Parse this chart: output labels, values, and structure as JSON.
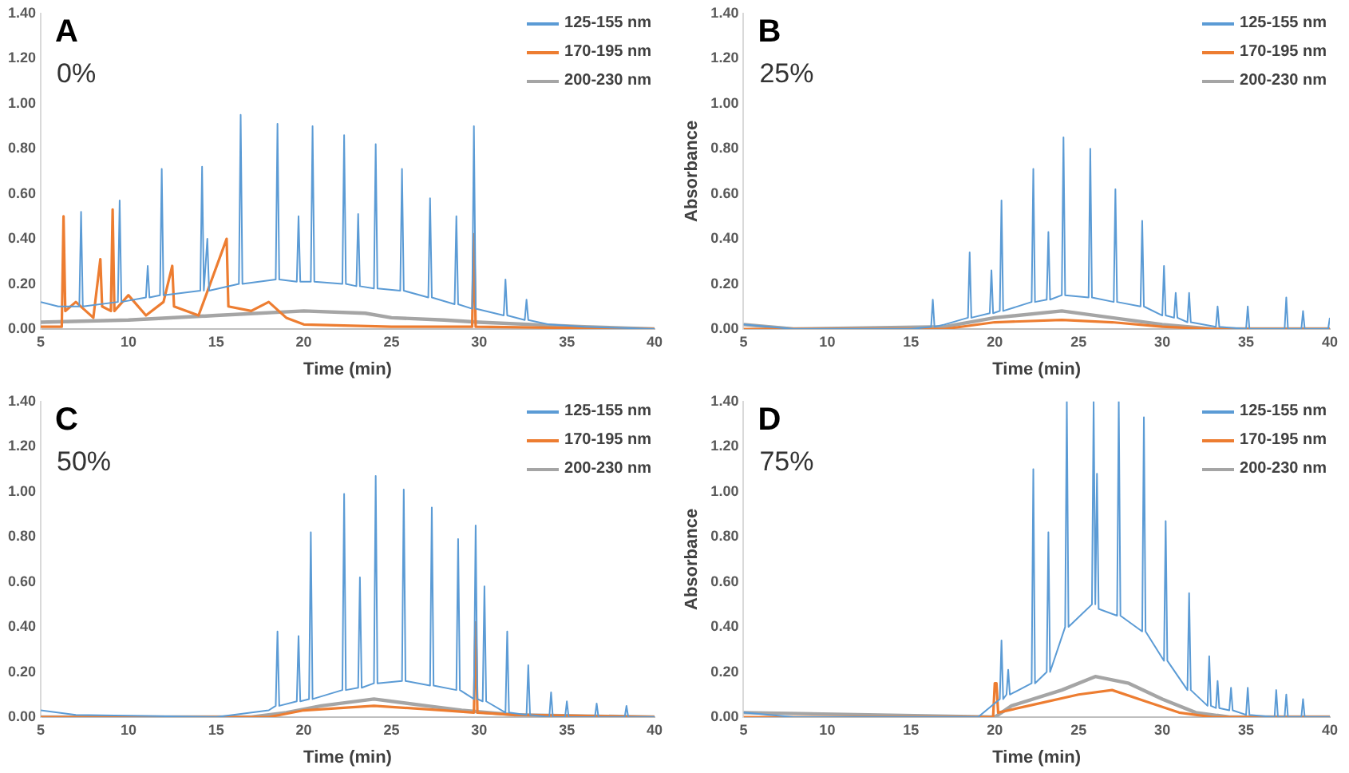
{
  "chart_data": [
    {
      "type": "line",
      "title": "A",
      "annotations": [
        "0%"
      ],
      "xlabel": "Time (min)",
      "xlim": [
        5,
        40
      ],
      "xticks": [
        5,
        10,
        15,
        20,
        25,
        30,
        35,
        40
      ],
      "ylim": [
        0,
        1.4
      ],
      "yticks": [
        {
          "value": 0,
          "label": "0.00"
        },
        {
          "value": 0.2,
          "label": "0.20"
        },
        {
          "value": 0.4,
          "label": "0.40"
        },
        {
          "value": 0.6,
          "label": "0.60"
        },
        {
          "value": 0.8,
          "label": "0.80"
        },
        {
          "value": 1,
          "label": "1.00"
        },
        {
          "value": 1.2,
          "label": "1.20"
        },
        {
          "value": 1.4,
          "label": "1.40"
        }
      ],
      "grid": false,
      "legend": "top right",
      "marker": "none",
      "line_style": "solid",
      "series": [
        {
          "name": "125-155 nm",
          "color": "#5b9bd5",
          "x": [
            5,
            6,
            7.2,
            7.3,
            7.4,
            9.4,
            9.5,
            9.6,
            11,
            11.1,
            11.2,
            11.8,
            11.9,
            12,
            14.1,
            14.2,
            14.3,
            14.5,
            14.6,
            16.3,
            16.4,
            16.5,
            18.4,
            18.5,
            18.6,
            19.6,
            19.7,
            19.8,
            20.4,
            20.5,
            20.6,
            22.2,
            22.3,
            22.4,
            23,
            23.1,
            23.2,
            24,
            24.1,
            24.2,
            25.5,
            25.6,
            25.7,
            27.1,
            27.2,
            27.3,
            28.6,
            28.7,
            28.8,
            29.6,
            29.7,
            29.8,
            31.4,
            31.5,
            31.6,
            32.6,
            32.7,
            32.8,
            34,
            36,
            40
          ],
          "values": [
            0.12,
            0.1,
            0.1,
            0.52,
            0.1,
            0.12,
            0.57,
            0.12,
            0.14,
            0.28,
            0.14,
            0.15,
            0.71,
            0.15,
            0.17,
            0.72,
            0.17,
            0.4,
            0.17,
            0.2,
            0.95,
            0.2,
            0.22,
            0.91,
            0.22,
            0.21,
            0.5,
            0.21,
            0.21,
            0.9,
            0.21,
            0.2,
            0.86,
            0.2,
            0.19,
            0.51,
            0.19,
            0.18,
            0.82,
            0.18,
            0.17,
            0.71,
            0.17,
            0.14,
            0.58,
            0.14,
            0.11,
            0.5,
            0.11,
            0.09,
            0.9,
            0.09,
            0.06,
            0.22,
            0.06,
            0.04,
            0.13,
            0.04,
            0.02,
            0.01,
            0
          ]
        },
        {
          "name": "170-195 nm",
          "color": "#ed7d31",
          "x": [
            5,
            6.2,
            6.3,
            6.4,
            7,
            8,
            8.4,
            8.5,
            9,
            9.1,
            9.2,
            10,
            11,
            12,
            12.5,
            12.6,
            14,
            15.6,
            15.7,
            17,
            18,
            19,
            20,
            25,
            29.6,
            29.7,
            29.8,
            40
          ],
          "values": [
            0.01,
            0.01,
            0.5,
            0.08,
            0.12,
            0.05,
            0.31,
            0.1,
            0.08,
            0.53,
            0.08,
            0.15,
            0.06,
            0.12,
            0.28,
            0.1,
            0.06,
            0.4,
            0.1,
            0.08,
            0.12,
            0.05,
            0.02,
            0.01,
            0.01,
            0.42,
            0.01,
            0
          ]
        },
        {
          "name": "200-230 nm",
          "color": "#a5a5a5",
          "x": [
            5,
            10,
            15,
            20,
            23.5,
            25,
            28,
            30,
            33,
            36,
            40
          ],
          "values": [
            0.03,
            0.04,
            0.06,
            0.08,
            0.07,
            0.05,
            0.04,
            0.03,
            0.02,
            0.01,
            0
          ]
        }
      ]
    },
    {
      "type": "line",
      "title": "B",
      "annotations": [
        "25%"
      ],
      "xlabel": "Time (min)",
      "ylabel": "Absorbance",
      "xlim": [
        5,
        40
      ],
      "xticks": [
        5,
        10,
        15,
        20,
        25,
        30,
        35,
        40
      ],
      "ylim": [
        0,
        1.4
      ],
      "yticks": [
        {
          "value": 0,
          "label": "0.00"
        },
        {
          "value": 0.2,
          "label": "0.20"
        },
        {
          "value": 0.4,
          "label": "0.40"
        },
        {
          "value": 0.6,
          "label": "0.60"
        },
        {
          "value": 0.8,
          "label": "0.80"
        },
        {
          "value": 1,
          "label": "1.00"
        },
        {
          "value": 1.2,
          "label": "1.20"
        },
        {
          "value": 1.4,
          "label": "1.40"
        }
      ],
      "grid": false,
      "legend": "top right",
      "marker": "none",
      "line_style": "solid",
      "series": [
        {
          "name": "125-155 nm",
          "color": "#5b9bd5",
          "x": [
            5,
            8,
            15,
            16.2,
            16.3,
            16.4,
            17,
            18.4,
            18.5,
            18.6,
            19.7,
            19.8,
            19.9,
            20.3,
            20.4,
            20.5,
            22.2,
            22.3,
            22.4,
            23.1,
            23.2,
            23.3,
            24,
            24.1,
            24.2,
            25.6,
            25.7,
            25.8,
            27.1,
            27.2,
            27.3,
            28.7,
            28.8,
            28.9,
            30,
            30.1,
            30.2,
            30.7,
            30.8,
            30.9,
            31.5,
            31.6,
            31.7,
            33.2,
            33.3,
            33.4,
            35,
            35.1,
            35.2,
            37.3,
            37.4,
            37.5,
            38.3,
            38.4,
            38.5,
            39.9,
            40
          ],
          "values": [
            0.02,
            0,
            0,
            0.01,
            0.13,
            0.01,
            0.02,
            0.05,
            0.34,
            0.05,
            0.07,
            0.26,
            0.07,
            0.08,
            0.57,
            0.08,
            0.12,
            0.71,
            0.12,
            0.13,
            0.43,
            0.13,
            0.15,
            0.85,
            0.15,
            0.14,
            0.8,
            0.14,
            0.12,
            0.62,
            0.12,
            0.1,
            0.48,
            0.1,
            0.06,
            0.28,
            0.06,
            0.05,
            0.16,
            0.05,
            0.03,
            0.16,
            0.03,
            0.01,
            0.1,
            0.01,
            0,
            0.1,
            0,
            0,
            0.14,
            0,
            0,
            0.08,
            0,
            0,
            0.05
          ]
        },
        {
          "name": "170-195 nm",
          "color": "#ed7d31",
          "x": [
            5,
            17,
            20,
            24,
            27,
            30,
            33,
            40
          ],
          "values": [
            0,
            0,
            0.03,
            0.04,
            0.03,
            0.01,
            0,
            0
          ]
        },
        {
          "name": "200-230 nm",
          "color": "#a5a5a5",
          "x": [
            5,
            8,
            17,
            20,
            24,
            27,
            30,
            33,
            40
          ],
          "values": [
            0.02,
            0,
            0.01,
            0.05,
            0.08,
            0.05,
            0.02,
            0,
            0
          ]
        }
      ]
    },
    {
      "type": "line",
      "title": "C",
      "annotations": [
        "50%"
      ],
      "xlabel": "Time (min)",
      "xlim": [
        5,
        40
      ],
      "xticks": [
        5,
        10,
        15,
        20,
        25,
        30,
        35,
        40
      ],
      "ylim": [
        0,
        1.4
      ],
      "yticks": [
        {
          "value": 0,
          "label": "0.00"
        },
        {
          "value": 0.2,
          "label": "0.20"
        },
        {
          "value": 0.4,
          "label": "0.40"
        },
        {
          "value": 0.6,
          "label": "0.60"
        },
        {
          "value": 0.8,
          "label": "0.80"
        },
        {
          "value": 1,
          "label": "1.00"
        },
        {
          "value": 1.2,
          "label": "1.20"
        },
        {
          "value": 1.4,
          "label": "1.40"
        }
      ],
      "grid": false,
      "legend": "top right",
      "marker": "none",
      "line_style": "solid",
      "series": [
        {
          "name": "125-155 nm",
          "color": "#5b9bd5",
          "x": [
            5,
            7,
            15,
            18,
            18.4,
            18.5,
            18.6,
            19.6,
            19.7,
            19.8,
            20.3,
            20.4,
            20.5,
            22.2,
            22.3,
            22.4,
            23.1,
            23.2,
            23.3,
            24,
            24.1,
            24.2,
            25.6,
            25.7,
            25.8,
            27.2,
            27.3,
            27.4,
            28.7,
            28.8,
            28.9,
            29.7,
            29.8,
            29.9,
            30.2,
            30.3,
            30.4,
            31.5,
            31.6,
            31.7,
            32.7,
            32.8,
            32.9,
            34,
            34.1,
            34.2,
            34.9,
            35,
            35.1,
            36.6,
            36.7,
            36.8,
            38.3,
            38.4,
            38.5,
            40
          ],
          "values": [
            0.03,
            0.01,
            0,
            0.03,
            0.05,
            0.38,
            0.05,
            0.07,
            0.36,
            0.07,
            0.08,
            0.82,
            0.08,
            0.12,
            0.99,
            0.12,
            0.13,
            0.62,
            0.13,
            0.15,
            1.07,
            0.15,
            0.16,
            1.01,
            0.16,
            0.14,
            0.93,
            0.14,
            0.12,
            0.79,
            0.12,
            0.08,
            0.85,
            0.08,
            0.07,
            0.58,
            0.07,
            0.02,
            0.38,
            0.02,
            0.01,
            0.23,
            0.01,
            0,
            0.11,
            0,
            0,
            0.07,
            0,
            0,
            0.06,
            0,
            0,
            0.05,
            0,
            0
          ]
        },
        {
          "name": "170-195 nm",
          "color": "#ed7d31",
          "x": [
            5,
            18,
            20,
            24,
            28,
            29.7,
            29.8,
            29.9,
            32,
            40
          ],
          "values": [
            0,
            0,
            0.03,
            0.05,
            0.03,
            0.02,
            0.42,
            0.02,
            0.01,
            0
          ]
        },
        {
          "name": "200-230 nm",
          "color": "#a5a5a5",
          "x": [
            5,
            17,
            19,
            21,
            24,
            27,
            29,
            32,
            40
          ],
          "values": [
            0,
            0,
            0.02,
            0.05,
            0.08,
            0.05,
            0.03,
            0.01,
            0
          ]
        }
      ]
    },
    {
      "type": "line",
      "title": "D",
      "annotations": [
        "75%"
      ],
      "xlabel": "Time (min)",
      "ylabel": "Absorbance",
      "xlim": [
        5,
        40
      ],
      "xticks": [
        5,
        10,
        15,
        20,
        25,
        30,
        35,
        40
      ],
      "ylim": [
        0,
        1.4
      ],
      "yticks": [
        {
          "value": 0,
          "label": "0.00"
        },
        {
          "value": 0.2,
          "label": "0.20"
        },
        {
          "value": 0.4,
          "label": "0.40"
        },
        {
          "value": 0.6,
          "label": "0.60"
        },
        {
          "value": 0.8,
          "label": "0.80"
        },
        {
          "value": 1,
          "label": "1.00"
        },
        {
          "value": 1.2,
          "label": "1.20"
        },
        {
          "value": 1.4,
          "label": "1.40"
        }
      ],
      "grid": false,
      "legend": "top right",
      "marker": "none",
      "line_style": "solid",
      "series": [
        {
          "name": "125-155 nm",
          "color": "#5b9bd5",
          "x": [
            5,
            8,
            19,
            20.3,
            20.4,
            20.5,
            20.7,
            20.8,
            20.9,
            22.2,
            22.3,
            22.4,
            23.1,
            23.2,
            23.3,
            24.2,
            24.3,
            24.4,
            25.8,
            25.9,
            26,
            26.1,
            26.2,
            27.3,
            27.4,
            27.5,
            28.8,
            28.9,
            29,
            30.1,
            30.2,
            30.3,
            31.5,
            31.6,
            31.7,
            32.7,
            32.8,
            32.9,
            33.2,
            33.3,
            33.4,
            34,
            34.1,
            34.2,
            35,
            35.1,
            35.2,
            36.7,
            36.8,
            36.9,
            37.3,
            37.4,
            37.5,
            38.3,
            38.4,
            38.5,
            40
          ],
          "values": [
            0.02,
            0,
            0,
            0.08,
            0.34,
            0.08,
            0.1,
            0.21,
            0.1,
            0.15,
            1.1,
            0.15,
            0.2,
            0.82,
            0.2,
            0.4,
            1.4,
            0.4,
            0.5,
            1.4,
            0.5,
            1.08,
            0.48,
            0.45,
            1.4,
            0.45,
            0.38,
            1.33,
            0.38,
            0.25,
            0.87,
            0.25,
            0.12,
            0.55,
            0.12,
            0.05,
            0.27,
            0.05,
            0.04,
            0.16,
            0.04,
            0.03,
            0.13,
            0.03,
            0.01,
            0.13,
            0.01,
            0,
            0.12,
            0,
            0,
            0.1,
            0,
            0,
            0.08,
            0,
            0
          ]
        },
        {
          "name": "170-195 nm",
          "color": "#ed7d31",
          "x": [
            5,
            19.9,
            20,
            20.1,
            20.2,
            22,
            25,
            27,
            29,
            31,
            33,
            40
          ],
          "values": [
            0,
            0,
            0.15,
            0.15,
            0.02,
            0.05,
            0.1,
            0.12,
            0.07,
            0.02,
            0,
            0
          ]
        },
        {
          "name": "200-230 nm",
          "color": "#a5a5a5",
          "x": [
            5,
            20,
            21,
            24,
            26,
            28,
            30,
            32,
            34,
            40
          ],
          "values": [
            0.02,
            0,
            0.05,
            0.12,
            0.18,
            0.15,
            0.08,
            0.02,
            0,
            0
          ]
        }
      ]
    }
  ]
}
